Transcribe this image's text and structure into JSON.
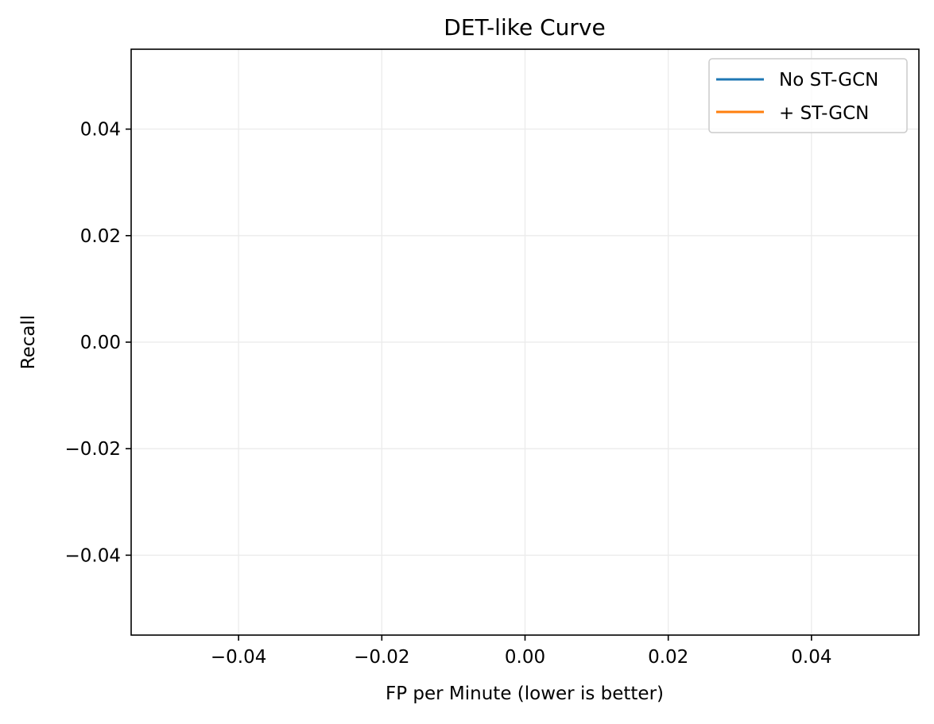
{
  "chart_data": {
    "type": "line",
    "title": "DET-like Curve",
    "xlabel": "FP per Minute (lower is better)",
    "ylabel": "Recall",
    "xlim": [
      -0.055,
      0.055
    ],
    "ylim": [
      -0.055,
      0.055
    ],
    "xticks": [
      -0.04,
      -0.02,
      0.0,
      0.02,
      0.04
    ],
    "yticks": [
      -0.04,
      -0.02,
      0.0,
      0.02,
      0.04
    ],
    "xtick_labels": [
      "−0.04",
      "−0.02",
      "0.00",
      "0.02",
      "0.04"
    ],
    "ytick_labels": [
      "−0.04",
      "−0.02",
      "0.00",
      "0.02",
      "0.04"
    ],
    "grid": true,
    "legend_position": "top-right",
    "series": [
      {
        "name": "No ST-GCN",
        "color": "#1f77b4",
        "x": [],
        "y": []
      },
      {
        "name": "+ ST-GCN",
        "color": "#ff7f0e",
        "x": [],
        "y": []
      }
    ]
  }
}
